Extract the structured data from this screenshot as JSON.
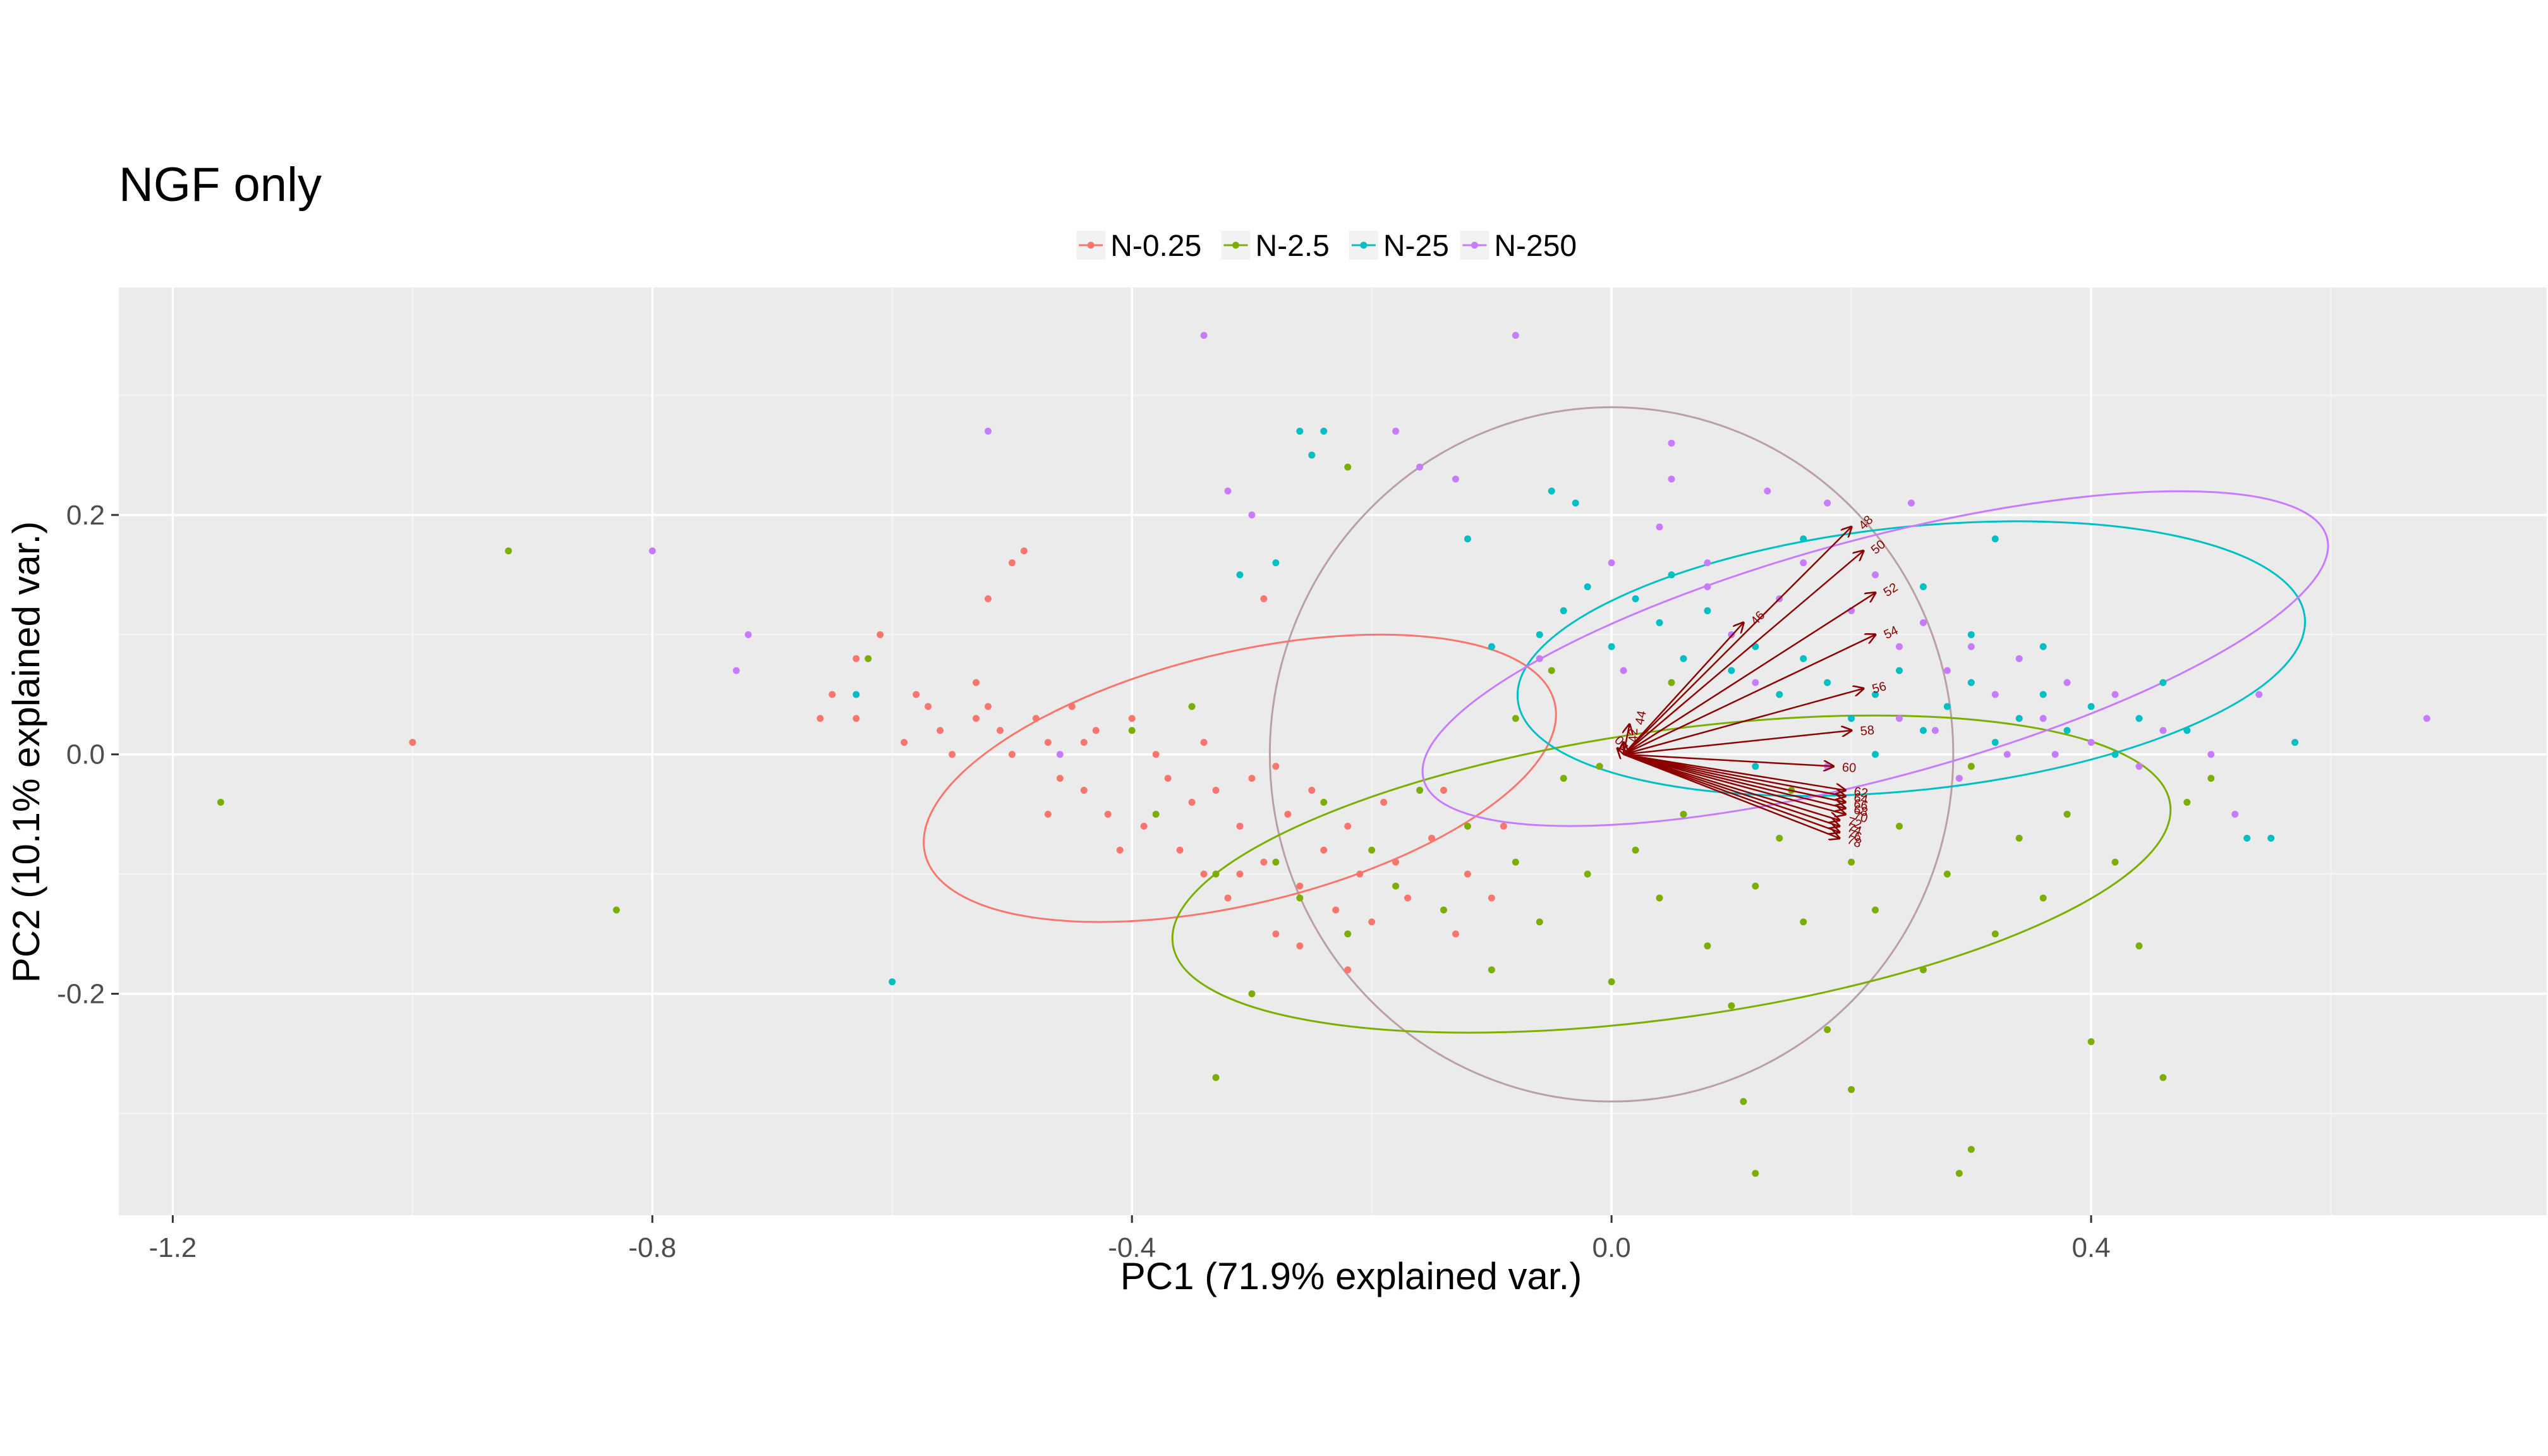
{
  "chart_data": {
    "type": "scatter",
    "title": "NGF only",
    "xlabel": "PC1 (71.9% explained var.)",
    "ylabel": "PC2 (10.1% explained var.)",
    "xlim": [
      -1.245,
      0.78
    ],
    "ylim": [
      -0.385,
      0.39
    ],
    "x_ticks": [
      -1.2,
      -0.8,
      -0.4,
      0.0,
      0.4
    ],
    "x_tick_labels": [
      "-1.2",
      "-0.8",
      "-0.4",
      "0.0",
      "0.4"
    ],
    "y_ticks": [
      -0.2,
      0.0,
      0.2
    ],
    "y_tick_labels": [
      "-0.2",
      "0.0",
      "0.2"
    ],
    "grid": true,
    "legend_position": "top",
    "panel_background": "#EBEBEB",
    "arrow_color": "#8B0000",
    "circle_color": "#B9A0A5",
    "series": [
      {
        "name": "N-0.25",
        "color": "#F8766D",
        "points": [
          [
            -1.0,
            0.01
          ],
          [
            -0.66,
            0.03
          ],
          [
            -0.65,
            0.05
          ],
          [
            -0.63,
            0.08
          ],
          [
            -0.61,
            0.1
          ],
          [
            -0.58,
            0.05
          ],
          [
            -0.57,
            0.04
          ],
          [
            -0.56,
            0.02
          ],
          [
            -0.55,
            0.0
          ],
          [
            -0.53,
            0.06
          ],
          [
            -0.53,
            0.03
          ],
          [
            -0.52,
            0.04
          ],
          [
            -0.51,
            0.02
          ],
          [
            -0.5,
            0.0
          ],
          [
            -0.5,
            0.16
          ],
          [
            -0.49,
            0.17
          ],
          [
            -0.48,
            0.03
          ],
          [
            -0.47,
            0.01
          ],
          [
            -0.46,
            -0.02
          ],
          [
            -0.45,
            0.04
          ],
          [
            -0.44,
            -0.03
          ],
          [
            -0.43,
            0.02
          ],
          [
            -0.42,
            -0.05
          ],
          [
            -0.4,
            0.03
          ],
          [
            -0.39,
            -0.06
          ],
          [
            -0.38,
            0.0
          ],
          [
            -0.37,
            -0.02
          ],
          [
            -0.36,
            -0.08
          ],
          [
            -0.35,
            -0.04
          ],
          [
            -0.34,
            -0.1
          ],
          [
            -0.33,
            -0.03
          ],
          [
            -0.32,
            -0.12
          ],
          [
            -0.31,
            -0.06
          ],
          [
            -0.3,
            -0.02
          ],
          [
            -0.29,
            -0.09
          ],
          [
            -0.28,
            -0.15
          ],
          [
            -0.27,
            -0.05
          ],
          [
            -0.26,
            -0.11
          ],
          [
            -0.25,
            -0.03
          ],
          [
            -0.24,
            -0.08
          ],
          [
            -0.23,
            -0.13
          ],
          [
            -0.22,
            -0.06
          ],
          [
            -0.21,
            -0.1
          ],
          [
            -0.2,
            -0.14
          ],
          [
            -0.19,
            -0.04
          ],
          [
            -0.18,
            -0.09
          ],
          [
            -0.17,
            -0.12
          ],
          [
            -0.15,
            -0.07
          ],
          [
            -0.14,
            -0.03
          ],
          [
            -0.13,
            -0.15
          ],
          [
            -0.12,
            -0.1
          ],
          [
            -0.1,
            -0.12
          ],
          [
            -0.09,
            -0.06
          ],
          [
            -0.28,
            -0.01
          ],
          [
            -0.34,
            0.01
          ],
          [
            -0.44,
            0.01
          ],
          [
            -0.47,
            -0.05
          ],
          [
            -0.41,
            -0.08
          ],
          [
            -0.31,
            -0.1
          ],
          [
            -0.26,
            -0.16
          ],
          [
            -0.22,
            -0.18
          ],
          [
            -0.29,
            0.13
          ],
          [
            -0.52,
            0.13
          ],
          [
            -0.59,
            0.01
          ],
          [
            -0.63,
            0.03
          ]
        ]
      },
      {
        "name": "N-2.5",
        "color": "#7CAE00",
        "points": [
          [
            -1.16,
            -0.04
          ],
          [
            -0.92,
            0.17
          ],
          [
            -0.83,
            -0.13
          ],
          [
            -0.62,
            0.08
          ],
          [
            -0.4,
            0.02
          ],
          [
            -0.38,
            -0.05
          ],
          [
            -0.35,
            0.04
          ],
          [
            -0.33,
            -0.1
          ],
          [
            -0.3,
            -0.2
          ],
          [
            -0.28,
            -0.09
          ],
          [
            -0.26,
            -0.12
          ],
          [
            -0.24,
            -0.04
          ],
          [
            -0.22,
            -0.15
          ],
          [
            -0.2,
            -0.08
          ],
          [
            -0.18,
            -0.11
          ],
          [
            -0.16,
            -0.03
          ],
          [
            -0.14,
            -0.13
          ],
          [
            -0.12,
            -0.06
          ],
          [
            -0.1,
            -0.18
          ],
          [
            -0.08,
            -0.09
          ],
          [
            -0.06,
            -0.14
          ],
          [
            -0.04,
            -0.02
          ],
          [
            -0.02,
            -0.1
          ],
          [
            0.0,
            -0.19
          ],
          [
            0.02,
            -0.08
          ],
          [
            0.04,
            -0.12
          ],
          [
            0.06,
            -0.05
          ],
          [
            0.08,
            -0.16
          ],
          [
            0.1,
            -0.21
          ],
          [
            0.12,
            -0.11
          ],
          [
            0.14,
            -0.07
          ],
          [
            0.16,
            -0.14
          ],
          [
            0.18,
            -0.23
          ],
          [
            0.2,
            -0.09
          ],
          [
            0.22,
            -0.13
          ],
          [
            0.24,
            -0.06
          ],
          [
            0.26,
            -0.18
          ],
          [
            0.28,
            -0.1
          ],
          [
            0.3,
            -0.33
          ],
          [
            0.32,
            -0.15
          ],
          [
            0.34,
            -0.07
          ],
          [
            0.36,
            -0.12
          ],
          [
            0.4,
            -0.24
          ],
          [
            0.44,
            -0.16
          ],
          [
            0.46,
            -0.27
          ],
          [
            0.48,
            -0.04
          ],
          [
            0.5,
            -0.02
          ],
          [
            -0.33,
            -0.27
          ],
          [
            0.12,
            -0.35
          ],
          [
            -0.05,
            0.07
          ],
          [
            -0.08,
            0.03
          ],
          [
            0.05,
            0.06
          ],
          [
            0.15,
            -0.03
          ],
          [
            -0.01,
            -0.01
          ],
          [
            0.3,
            -0.01
          ],
          [
            0.38,
            -0.05
          ],
          [
            0.42,
            -0.09
          ],
          [
            0.11,
            -0.29
          ],
          [
            0.2,
            -0.28
          ],
          [
            -0.22,
            0.24
          ],
          [
            0.29,
            -0.35
          ]
        ]
      },
      {
        "name": "N-25",
        "color": "#00BFC4",
        "points": [
          [
            -0.6,
            -0.19
          ],
          [
            -0.26,
            0.27
          ],
          [
            -0.24,
            0.27
          ],
          [
            -0.25,
            0.25
          ],
          [
            -0.31,
            0.15
          ],
          [
            -0.28,
            0.16
          ],
          [
            -0.12,
            0.18
          ],
          [
            -0.05,
            0.22
          ],
          [
            -0.03,
            0.21
          ],
          [
            -0.06,
            0.1
          ],
          [
            -0.04,
            0.12
          ],
          [
            -0.02,
            0.14
          ],
          [
            0.0,
            0.09
          ],
          [
            0.02,
            0.13
          ],
          [
            0.04,
            0.11
          ],
          [
            0.06,
            0.08
          ],
          [
            0.08,
            0.12
          ],
          [
            0.1,
            0.07
          ],
          [
            0.12,
            0.09
          ],
          [
            0.14,
            0.05
          ],
          [
            0.16,
            0.08
          ],
          [
            0.18,
            0.06
          ],
          [
            0.2,
            0.03
          ],
          [
            0.22,
            0.05
          ],
          [
            0.24,
            0.07
          ],
          [
            0.26,
            0.02
          ],
          [
            0.28,
            0.04
          ],
          [
            0.3,
            0.06
          ],
          [
            0.32,
            0.01
          ],
          [
            0.34,
            0.03
          ],
          [
            0.36,
            0.05
          ],
          [
            0.38,
            0.02
          ],
          [
            0.4,
            0.04
          ],
          [
            0.42,
            0.0
          ],
          [
            0.44,
            0.03
          ],
          [
            0.46,
            0.06
          ],
          [
            0.48,
            0.02
          ],
          [
            0.53,
            -0.07
          ],
          [
            0.55,
            -0.07
          ],
          [
            0.57,
            0.01
          ],
          [
            0.32,
            0.18
          ],
          [
            0.26,
            0.14
          ],
          [
            0.16,
            0.18
          ],
          [
            -0.1,
            0.09
          ],
          [
            0.05,
            0.15
          ],
          [
            0.3,
            0.1
          ],
          [
            0.36,
            0.09
          ],
          [
            0.22,
            0.0
          ],
          [
            0.12,
            -0.01
          ],
          [
            -0.63,
            0.05
          ]
        ]
      },
      {
        "name": "N-250",
        "color": "#C77CFF",
        "points": [
          [
            -0.34,
            0.35
          ],
          [
            -0.08,
            0.35
          ],
          [
            -0.52,
            0.27
          ],
          [
            -0.8,
            0.17
          ],
          [
            -0.72,
            0.1
          ],
          [
            -0.73,
            0.07
          ],
          [
            -0.3,
            0.2
          ],
          [
            -0.32,
            0.22
          ],
          [
            -0.16,
            0.24
          ],
          [
            -0.18,
            0.27
          ],
          [
            -0.13,
            0.23
          ],
          [
            0.05,
            0.26
          ],
          [
            0.05,
            0.23
          ],
          [
            0.13,
            0.22
          ],
          [
            0.18,
            0.21
          ],
          [
            0.25,
            0.21
          ],
          [
            0.0,
            0.16
          ],
          [
            0.04,
            0.19
          ],
          [
            0.08,
            0.14
          ],
          [
            0.1,
            0.1
          ],
          [
            0.14,
            0.13
          ],
          [
            0.16,
            0.16
          ],
          [
            0.2,
            0.12
          ],
          [
            0.24,
            0.09
          ],
          [
            0.26,
            0.11
          ],
          [
            0.28,
            0.07
          ],
          [
            0.3,
            0.09
          ],
          [
            0.32,
            0.05
          ],
          [
            0.34,
            0.08
          ],
          [
            0.36,
            0.03
          ],
          [
            0.38,
            0.06
          ],
          [
            0.4,
            0.01
          ],
          [
            0.42,
            0.05
          ],
          [
            0.44,
            -0.01
          ],
          [
            0.46,
            0.02
          ],
          [
            0.5,
            0.0
          ],
          [
            0.52,
            -0.05
          ],
          [
            0.54,
            0.05
          ],
          [
            0.68,
            0.03
          ],
          [
            0.27,
            0.02
          ],
          [
            0.33,
            0.0
          ],
          [
            0.37,
            0.0
          ],
          [
            0.29,
            -0.02
          ],
          [
            0.24,
            0.03
          ],
          [
            0.12,
            0.06
          ],
          [
            0.08,
            0.16
          ],
          [
            0.01,
            0.07
          ],
          [
            -0.46,
            0.0
          ],
          [
            -0.06,
            0.08
          ],
          [
            0.18,
            -0.01
          ],
          [
            0.22,
            0.15
          ]
        ]
      }
    ],
    "ellipses": [
      {
        "series": "N-0.25",
        "color": "#F8766D",
        "center": [
          -0.31,
          -0.02
        ],
        "rx": 0.27,
        "ry": 0.105,
        "angle_deg": -13.5
      },
      {
        "series": "N-2.5",
        "color": "#7CAE00",
        "center": [
          0.05,
          -0.1
        ],
        "rx": 0.42,
        "ry": 0.12,
        "angle_deg": -8
      },
      {
        "series": "N-25",
        "color": "#00BFC4",
        "center": [
          0.25,
          0.08
        ],
        "rx": 0.33,
        "ry": 0.11,
        "angle_deg": -6
      },
      {
        "series": "N-250",
        "color": "#C77CFF",
        "center": [
          0.22,
          0.08
        ],
        "rx": 0.39,
        "ry": 0.1,
        "angle_deg": -15
      }
    ],
    "correlation_circle": {
      "center": [
        0.0,
        0.0
      ],
      "rx": 0.285,
      "ry": 0.29
    },
    "loadings": [
      {
        "label": "44",
        "x": 0.015,
        "y": 0.025
      },
      {
        "label": "46",
        "x": 0.11,
        "y": 0.11
      },
      {
        "label": "48",
        "x": 0.2,
        "y": 0.19
      },
      {
        "label": "50",
        "x": 0.21,
        "y": 0.17
      },
      {
        "label": "52",
        "x": 0.22,
        "y": 0.135
      },
      {
        "label": "54",
        "x": 0.22,
        "y": 0.1
      },
      {
        "label": "56",
        "x": 0.21,
        "y": 0.055
      },
      {
        "label": "58",
        "x": 0.2,
        "y": 0.02
      },
      {
        "label": "60",
        "x": 0.185,
        "y": -0.01
      },
      {
        "label": "62",
        "x": 0.195,
        "y": -0.03
      },
      {
        "label": "64",
        "x": 0.195,
        "y": -0.035
      },
      {
        "label": "66",
        "x": 0.195,
        "y": -0.04
      },
      {
        "label": "68",
        "x": 0.195,
        "y": -0.045
      },
      {
        "label": "70",
        "x": 0.195,
        "y": -0.05
      },
      {
        "label": "72",
        "x": 0.19,
        "y": -0.055
      },
      {
        "label": "74",
        "x": 0.19,
        "y": -0.06
      },
      {
        "label": "76",
        "x": 0.19,
        "y": -0.065
      },
      {
        "label": "78",
        "x": 0.19,
        "y": -0.07
      },
      {
        "label": "42",
        "x": 0.01,
        "y": 0.01
      },
      {
        "label": "40",
        "x": 0.005,
        "y": 0.005
      }
    ]
  }
}
